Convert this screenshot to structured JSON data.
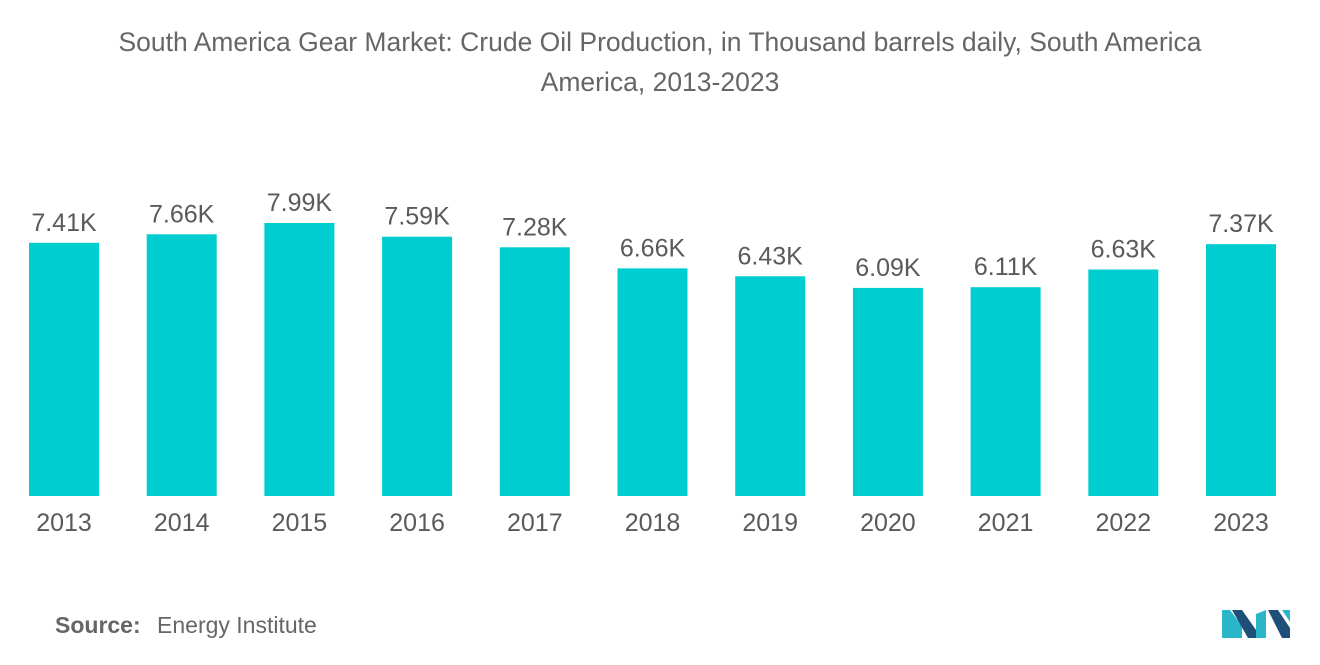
{
  "title_lines": [
    "South America Gear Market: Crude Oil Production, in Thousand barrels daily, South America",
    "America, 2013-2023"
  ],
  "source": {
    "label": "Source:",
    "value": "Energy Institute"
  },
  "colors": {
    "bar": "#00CDCF",
    "logo_dark": "#1f4e79",
    "logo_teal": "#2bb5c8"
  },
  "logo": {
    "icon": "mordor-intelligence-logo"
  },
  "chart_data": {
    "type": "bar",
    "title": "South America Gear Market: Crude Oil Production, in Thousand barrels daily, South America America, 2013-2023",
    "categories": [
      "2013",
      "2014",
      "2015",
      "2016",
      "2017",
      "2018",
      "2019",
      "2020",
      "2021",
      "2022",
      "2023"
    ],
    "values": [
      7.41,
      7.66,
      7.99,
      7.59,
      7.28,
      6.66,
      6.43,
      6.09,
      6.11,
      6.63,
      7.37
    ],
    "data_labels": [
      "7.41K",
      "7.66K",
      "7.99K",
      "7.59K",
      "7.28K",
      "6.66K",
      "6.43K",
      "6.09K",
      "6.11K",
      "6.63K",
      "7.37K"
    ],
    "xlabel": "",
    "ylabel": "",
    "ylim": [
      0,
      7.99
    ],
    "grid": false,
    "legend": "none"
  }
}
